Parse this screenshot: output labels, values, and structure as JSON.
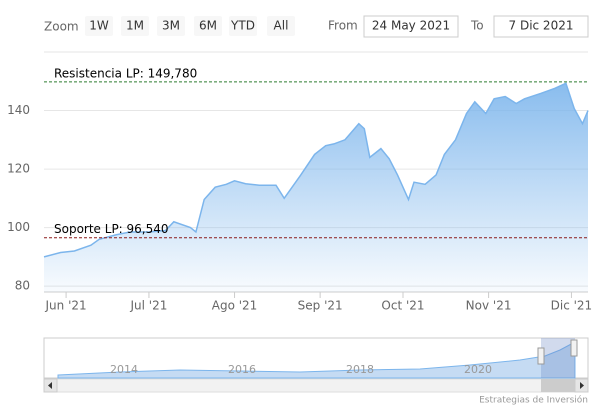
{
  "range_selector": {
    "zoom_label": "Zoom",
    "buttons": [
      "1W",
      "1M",
      "3M",
      "6M",
      "YTD",
      "All"
    ],
    "from_label": "From",
    "from": "24 May 2021",
    "to_label": "To",
    "to": "7 Dic 2021"
  },
  "chart_data": {
    "type": "area",
    "x": [
      "2021-05-24",
      "2021-05-30",
      "2021-06-04",
      "2021-06-10",
      "2021-06-13",
      "2021-06-19",
      "2021-06-24",
      "2021-07-01",
      "2021-07-07",
      "2021-07-10",
      "2021-07-16",
      "2021-07-18",
      "2021-07-21",
      "2021-07-25",
      "2021-07-29",
      "2021-08-01",
      "2021-08-05",
      "2021-08-10",
      "2021-08-16",
      "2021-08-19",
      "2021-08-25",
      "2021-08-30",
      "2021-09-03",
      "2021-09-06",
      "2021-09-10",
      "2021-09-15",
      "2021-09-17",
      "2021-09-19",
      "2021-09-23",
      "2021-09-26",
      "2021-09-29",
      "2021-10-03",
      "2021-10-05",
      "2021-10-09",
      "2021-10-13",
      "2021-10-16",
      "2021-10-20",
      "2021-10-24",
      "2021-10-27",
      "2021-10-31",
      "2021-11-03",
      "2021-11-07",
      "2021-11-11",
      "2021-11-14",
      "2021-11-20",
      "2021-11-25",
      "2021-11-29",
      "2021-12-02",
      "2021-12-05",
      "2021-12-07"
    ],
    "series": [
      {
        "color": "#7cb5ec",
        "values": [
          90,
          91.5,
          92,
          94,
          96,
          97.5,
          98.5,
          98.5,
          99,
          102,
          100,
          98.5,
          109.6,
          113.8,
          114.8,
          116,
          115,
          114.5,
          114.5,
          110,
          118,
          125,
          128,
          128.6,
          130,
          135.5,
          133.8,
          124,
          127,
          123.5,
          118,
          109.6,
          115.5,
          114.8,
          118,
          125,
          130,
          139,
          143,
          139,
          144,
          144.8,
          142.4,
          144,
          145.9,
          147.6,
          149.3,
          140.7,
          135.5,
          140
        ]
      }
    ],
    "xlim": [
      "2021-05-24",
      "2021-12-07"
    ],
    "xticks": [
      {
        "value": "2021-06-01",
        "label": "Jun '21"
      },
      {
        "value": "2021-07-01",
        "label": "Jul '21"
      },
      {
        "value": "2021-08-01",
        "label": "Ago '21"
      },
      {
        "value": "2021-09-01",
        "label": "Sep '21"
      },
      {
        "value": "2021-10-01",
        "label": "Oct '21"
      },
      {
        "value": "2021-11-01",
        "label": "Nov '21"
      },
      {
        "value": "2021-12-01",
        "label": "Dic '21"
      }
    ],
    "ylim": [
      78,
      160
    ],
    "yticks": [
      80,
      100,
      120,
      140
    ],
    "grid": true,
    "plot_lines": [
      {
        "value": 149.78,
        "label": "Resistencia LP: 149,780",
        "color": "#2e7d32"
      },
      {
        "value": 96.54,
        "label": "Soporte LP: 96,540",
        "color": "#8b1a1a"
      }
    ]
  },
  "navigator": {
    "labels": [
      "2014",
      "2016",
      "2018",
      "2020"
    ]
  },
  "credits": "Estrategias de Inversión"
}
